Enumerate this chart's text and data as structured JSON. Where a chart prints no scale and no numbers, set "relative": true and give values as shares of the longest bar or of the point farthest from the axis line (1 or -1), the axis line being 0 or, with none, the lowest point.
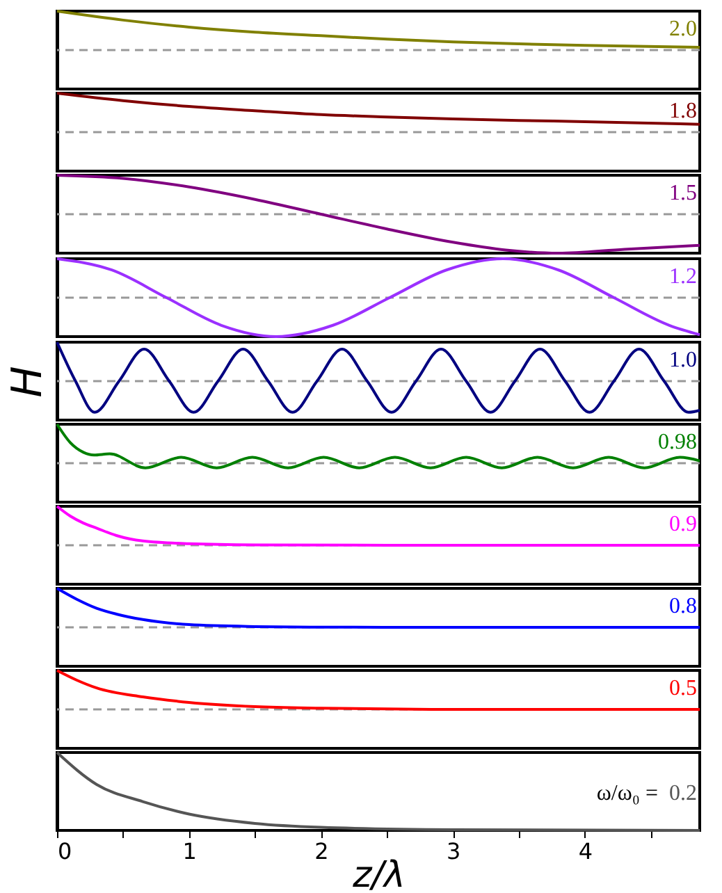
{
  "chart_data": [
    {
      "type": "line",
      "relative": true,
      "xlim": [
        0,
        4.87
      ],
      "tick_labels": false,
      "x": [
        0,
        0.5,
        1,
        1.5,
        2,
        2.5,
        3,
        3.5,
        4,
        4.87
      ],
      "series": [
        {
          "name": "2.0",
          "color": "#808000",
          "values": [
            1,
            0.77,
            0.59,
            0.46,
            0.37,
            0.28,
            0.21,
            0.16,
            0.12,
            0.07
          ]
        }
      ],
      "ref_lines": [
        {
          "axis": "y",
          "value": 0,
          "line_style": "dashed",
          "color": "#999999"
        }
      ]
    },
    {
      "type": "line",
      "relative": true,
      "xlim": [
        0,
        4.87
      ],
      "tick_labels": false,
      "x": [
        0,
        0.5,
        1,
        1.5,
        2,
        2.5,
        3,
        3.5,
        4,
        4.87
      ],
      "series": [
        {
          "name": "1.8",
          "color": "#800000",
          "values": [
            1,
            0.81,
            0.66,
            0.55,
            0.45,
            0.39,
            0.34,
            0.3,
            0.27,
            0.2
          ]
        }
      ],
      "ref_lines": [
        {
          "axis": "y",
          "value": 0,
          "line_style": "dashed",
          "color": "#999999"
        }
      ]
    },
    {
      "type": "line",
      "relative": true,
      "xlim": [
        0,
        4.87
      ],
      "tick_labels": false,
      "x": [
        0,
        0.5,
        1,
        1.5,
        2,
        2.5,
        3,
        3.4,
        3.8,
        4.3,
        4.87
      ],
      "series": [
        {
          "name": "1.5",
          "color": "#800080",
          "values": [
            1,
            0.92,
            0.7,
            0.38,
            0,
            -0.38,
            -0.72,
            -0.92,
            -1,
            -0.9,
            -0.8
          ]
        }
      ],
      "ref_lines": [
        {
          "axis": "y",
          "value": 0,
          "line_style": "dashed",
          "color": "#999999"
        }
      ]
    },
    {
      "type": "line",
      "relative": true,
      "xlim": [
        0,
        4.87
      ],
      "tick_labels": false,
      "x": [
        0,
        0.415,
        0.83,
        1.245,
        1.66,
        2.09,
        2.52,
        2.95,
        3.38,
        3.8,
        4.22,
        4.64,
        4.87
      ],
      "series": [
        {
          "name": "1.2",
          "color": "#9b30ff",
          "values": [
            1,
            0.71,
            0,
            -0.71,
            -1,
            -0.71,
            0,
            0.71,
            1,
            0.71,
            0,
            -0.71,
            -0.95
          ]
        }
      ],
      "ref_lines": [
        {
          "axis": "y",
          "value": 0,
          "line_style": "dashed",
          "color": "#999999"
        }
      ]
    },
    {
      "type": "line",
      "relative": true,
      "xlim": [
        0,
        4.87
      ],
      "tick_labels": false,
      "ylabel": "H",
      "x": [
        0,
        0.14,
        0.285,
        0.47,
        0.66,
        0.85,
        1.035,
        1.22,
        1.41,
        1.6,
        1.785,
        1.97,
        2.16,
        2.35,
        2.535,
        2.72,
        2.91,
        3.1,
        3.285,
        3.47,
        3.66,
        3.85,
        4.035,
        4.22,
        4.41,
        4.6,
        4.785,
        4.87
      ],
      "series": [
        {
          "name": "1.0",
          "color": "#000080",
          "values": [
            1,
            0,
            -0.8,
            0,
            0.82,
            0,
            -0.8,
            0,
            0.82,
            0,
            -0.8,
            0,
            0.82,
            0,
            -0.8,
            0,
            0.82,
            0,
            -0.8,
            0,
            0.82,
            0,
            -0.8,
            0,
            0.82,
            0,
            -0.8,
            -0.75
          ]
        }
      ],
      "ref_lines": [
        {
          "axis": "y",
          "value": 0,
          "line_style": "dashed",
          "color": "#999999"
        }
      ]
    },
    {
      "type": "line",
      "relative": true,
      "xlim": [
        0,
        4.87
      ],
      "tick_labels": false,
      "x": [
        0,
        0.1,
        0.2,
        0.28,
        0.4,
        0.67,
        0.94,
        1.21,
        1.48,
        1.75,
        2.02,
        2.29,
        2.56,
        2.83,
        3.1,
        3.37,
        3.64,
        3.91,
        4.18,
        4.45,
        4.72,
        4.87
      ],
      "series": [
        {
          "name": "0.98",
          "color": "#008000",
          "values": [
            1,
            0.53,
            0.28,
            0.21,
            0.24,
            -0.12,
            0.15,
            -0.12,
            0.15,
            -0.12,
            0.15,
            -0.12,
            0.15,
            -0.12,
            0.15,
            -0.12,
            0.15,
            -0.12,
            0.15,
            -0.12,
            0.15,
            0.06
          ]
        }
      ],
      "ref_lines": [
        {
          "axis": "y",
          "value": 0,
          "line_style": "dashed",
          "color": "#999999"
        }
      ]
    },
    {
      "type": "line",
      "relative": true,
      "xlim": [
        0,
        4.87
      ],
      "tick_labels": false,
      "x": [
        0,
        0.1,
        0.2,
        0.3,
        0.45,
        0.65,
        1,
        1.5,
        2.5,
        4.87
      ],
      "series": [
        {
          "name": "0.9",
          "color": "#ff00ff",
          "values": [
            1,
            0.75,
            0.57,
            0.44,
            0.25,
            0.11,
            0.04,
            0.01,
            0,
            0
          ]
        }
      ],
      "ref_lines": [
        {
          "axis": "y",
          "value": 0,
          "line_style": "dashed",
          "color": "#999999"
        }
      ]
    },
    {
      "type": "line",
      "relative": true,
      "xlim": [
        0,
        4.87
      ],
      "tick_labels": false,
      "x": [
        0,
        0.15,
        0.3,
        0.45,
        0.65,
        1,
        1.5,
        2,
        2.5,
        4.87
      ],
      "series": [
        {
          "name": "0.8",
          "color": "#0000ff",
          "values": [
            1,
            0.72,
            0.49,
            0.34,
            0.2,
            0.07,
            0.02,
            0.005,
            0,
            0
          ]
        }
      ],
      "ref_lines": [
        {
          "axis": "y",
          "value": 0,
          "line_style": "dashed",
          "color": "#999999"
        }
      ]
    },
    {
      "type": "line",
      "relative": true,
      "xlim": [
        0,
        4.87
      ],
      "tick_labels": false,
      "x": [
        0,
        0.15,
        0.3,
        0.65,
        1,
        1.5,
        2,
        3,
        4.87
      ],
      "series": [
        {
          "name": "0.5",
          "color": "#ff0000",
          "values": [
            1,
            0.75,
            0.55,
            0.32,
            0.18,
            0.07,
            0.03,
            0,
            0
          ]
        }
      ],
      "ref_lines": [
        {
          "axis": "y",
          "value": 0,
          "line_style": "dashed",
          "color": "#999999"
        }
      ]
    },
    {
      "type": "line",
      "relative": true,
      "xlim": [
        0,
        4.87
      ],
      "tick_labels": "x",
      "xlabel": "z/λ",
      "annotations": [
        "ω/ω₀ ="
      ],
      "xticks": [
        0,
        {
          "value": 0.5,
          "label": null
        },
        1,
        {
          "value": 1.5,
          "label": null
        },
        2,
        {
          "value": 2.5,
          "label": null
        },
        3,
        {
          "value": 3.5,
          "label": null
        },
        4,
        {
          "value": 4.5,
          "label": null
        }
      ],
      "x": [
        0,
        0.3,
        0.65,
        1,
        1.5,
        2,
        3,
        4.87
      ],
      "series": [
        {
          "name": "0.2",
          "color": "#555555",
          "values": [
            1,
            0.59,
            0.37,
            0.21,
            0.09,
            0.04,
            0.01,
            0
          ]
        }
      ]
    }
  ]
}
